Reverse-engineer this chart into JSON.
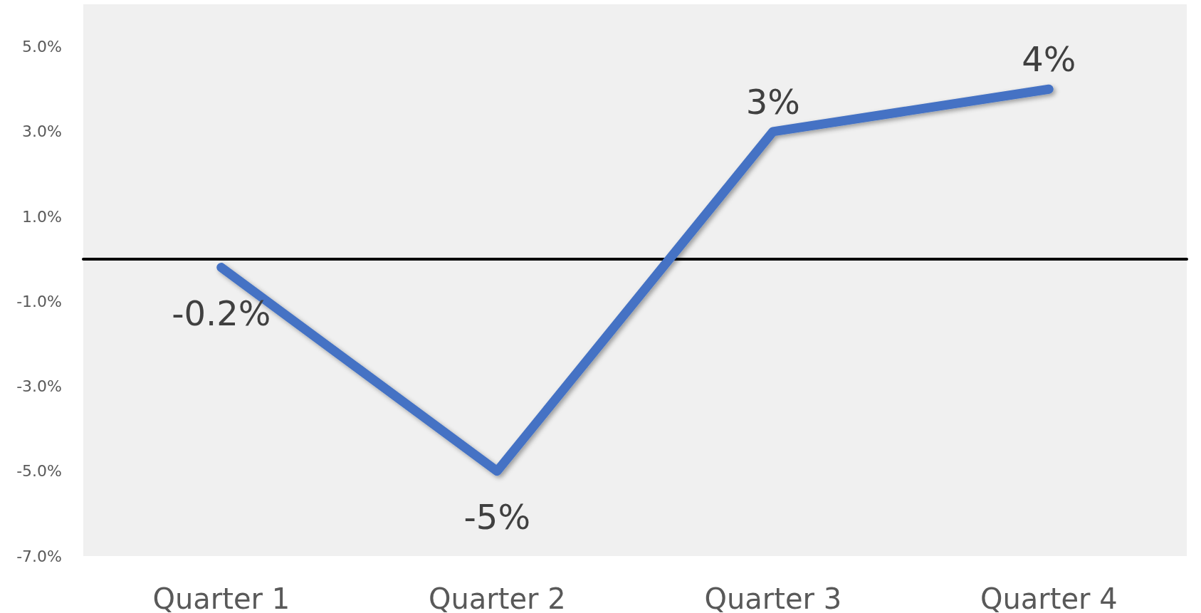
{
  "chart_data": {
    "type": "line",
    "categories": [
      "Quarter 1",
      "Quarter 2",
      "Quarter 3",
      "Quarter 4"
    ],
    "series": [
      {
        "color": "#4472c4",
        "values": [
          -0.2,
          -5,
          3,
          4
        ],
        "value_labels": [
          "-0.2%",
          "-5%",
          "3%",
          "4%"
        ]
      }
    ],
    "ylim": [
      -7,
      6
    ],
    "yticks": [
      {
        "value": -7,
        "label": "-7.0%"
      },
      {
        "value": -5,
        "label": "-5.0%"
      },
      {
        "value": -3,
        "label": "-3.0%"
      },
      {
        "value": -1,
        "label": "-1.0%"
      },
      {
        "value": 1,
        "label": "1.0%"
      },
      {
        "value": 3,
        "label": "3.0%"
      },
      {
        "value": 5,
        "label": "5.0%"
      }
    ],
    "grid": false,
    "marker": "none",
    "line_style": "solid"
  }
}
